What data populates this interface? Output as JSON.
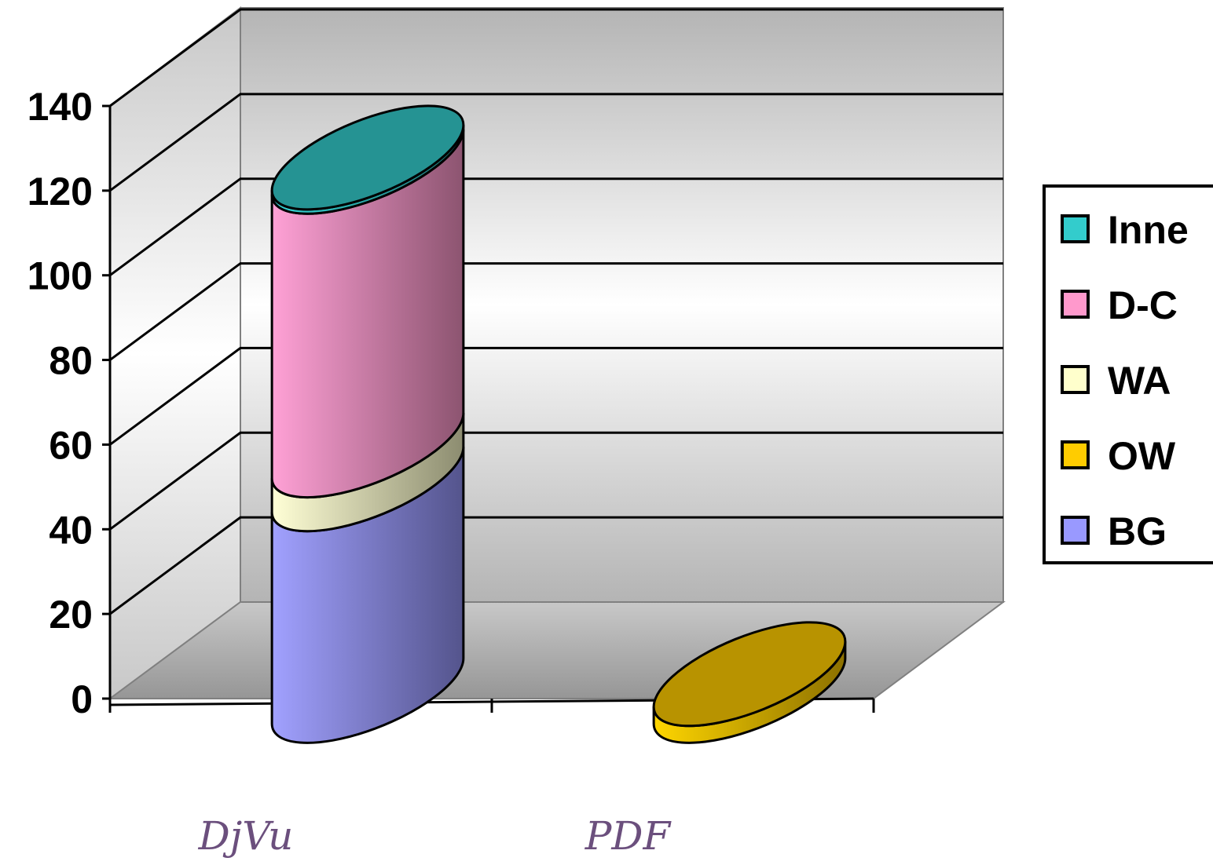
{
  "chart_data": {
    "type": "bar",
    "subtype": "stacked-3d-cylinder",
    "categories": [
      "DjVu",
      "PDF"
    ],
    "series": [
      {
        "name": "BG",
        "values": [
          50,
          0
        ],
        "color": "#9999ff"
      },
      {
        "name": "OW",
        "values": [
          0,
          4
        ],
        "color": "#ffcc00"
      },
      {
        "name": "WA",
        "values": [
          8,
          0
        ],
        "color": "#ffffcc"
      },
      {
        "name": "D-C",
        "values": [
          67,
          0
        ],
        "color": "#ff99cc"
      },
      {
        "name": "Inne",
        "values": [
          1,
          0
        ],
        "color": "#33cccc"
      }
    ],
    "yticks": [
      "0",
      "20",
      "40",
      "60",
      "80",
      "100",
      "120",
      "140"
    ],
    "ylim": [
      0,
      140
    ],
    "grid": true,
    "legend": "right"
  }
}
